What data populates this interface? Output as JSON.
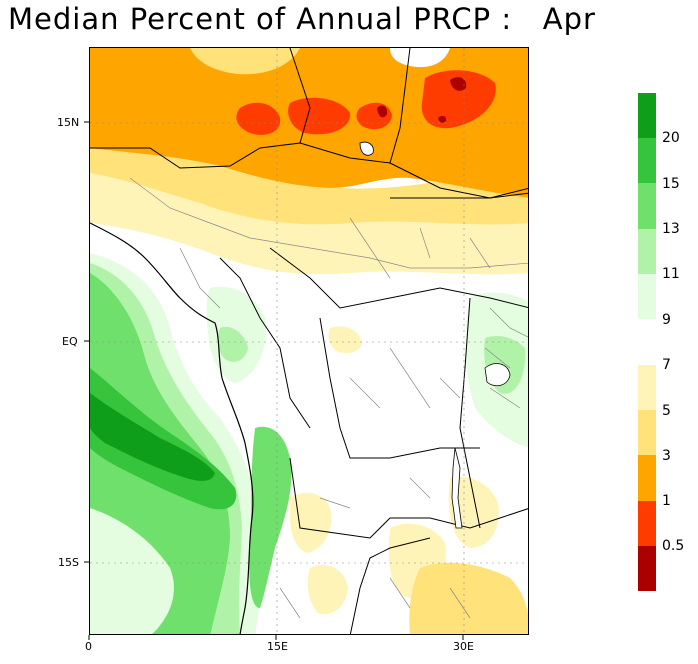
{
  "title": "Median Percent of Annual PRCP :   Apr",
  "map": {
    "lat_labels": [
      "15N",
      "EQ",
      "15S"
    ],
    "lon_labels": [
      "0",
      "15E",
      "30E"
    ],
    "gridlines": true,
    "borders": "country and province boundaries"
  },
  "legend": {
    "wet_labels": [
      "20",
      "15",
      "13",
      "11",
      "9"
    ],
    "wet_colors": [
      "#0e9e1a",
      "#35c43b",
      "#6fe06b",
      "#b0f2a8",
      "#e4fde0"
    ],
    "dry_labels": [
      "7",
      "5",
      "3",
      "1",
      "0.5"
    ],
    "dry_colors": [
      "#fff4b8",
      "#ffe27a",
      "#ffa500",
      "#ff3c00",
      "#aa0000"
    ]
  },
  "colors": {
    "frame": "#000000",
    "country_border": "#000000",
    "province_border": "#888888"
  }
}
